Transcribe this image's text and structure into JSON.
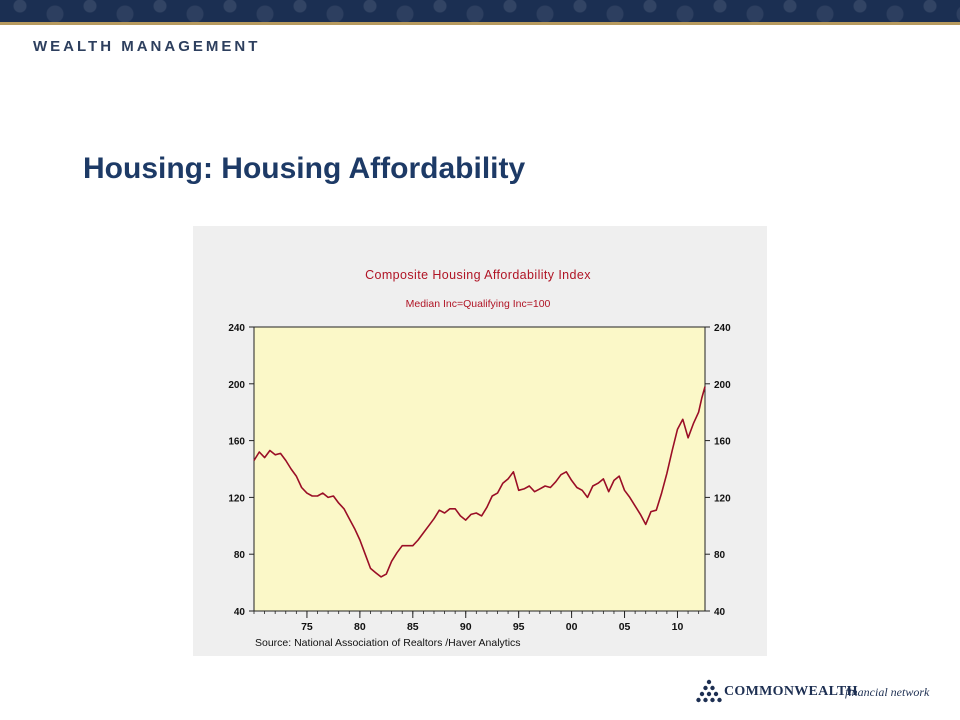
{
  "header": {
    "brand": "WEALTH MANAGEMENT"
  },
  "slide": {
    "title": "Housing: Housing Affordability"
  },
  "chart_data": {
    "type": "line",
    "title": "Composite Housing Affordability Index",
    "subtitle": "Median Inc=Qualifying Inc=100",
    "source": "Source:  National Association of Realtors /Haver Analytics",
    "x_tick_labels": [
      "75",
      "80",
      "85",
      "90",
      "95",
      "00",
      "05",
      "10"
    ],
    "x_ticks": [
      1975,
      1980,
      1985,
      1990,
      1995,
      2000,
      2005,
      2010
    ],
    "xlim": [
      1970.0,
      2012.6
    ],
    "ylim": [
      40,
      240
    ],
    "y_ticks": [
      40,
      80,
      120,
      160,
      200,
      240
    ],
    "y_tick_labels": [
      "40",
      "80",
      "120",
      "160",
      "200",
      "240"
    ],
    "grid": false,
    "plot_background": "#fbf8c8",
    "panel_background": "#efefef",
    "series": [
      {
        "color": "#9a0e26",
        "x": [
          1970.0,
          1970.5,
          1971.0,
          1971.5,
          1972.0,
          1972.5,
          1973.0,
          1973.5,
          1974.0,
          1974.5,
          1975.0,
          1975.5,
          1976.0,
          1976.5,
          1977.0,
          1977.5,
          1978.0,
          1978.5,
          1979.0,
          1979.5,
          1980.0,
          1980.5,
          1981.0,
          1981.5,
          1982.0,
          1982.5,
          1983.0,
          1983.5,
          1984.0,
          1984.5,
          1985.0,
          1985.5,
          1986.0,
          1986.5,
          1987.0,
          1987.5,
          1988.0,
          1988.5,
          1989.0,
          1989.5,
          1990.0,
          1990.5,
          1991.0,
          1991.5,
          1992.0,
          1992.5,
          1993.0,
          1993.5,
          1994.0,
          1994.5,
          1995.0,
          1995.5,
          1996.0,
          1996.5,
          1997.0,
          1997.5,
          1998.0,
          1998.5,
          1999.0,
          1999.5,
          2000.0,
          2000.5,
          2001.0,
          2001.5,
          2002.0,
          2002.5,
          2003.0,
          2003.5,
          2004.0,
          2004.5,
          2005.0,
          2005.5,
          2006.0,
          2006.5,
          2007.0,
          2007.5,
          2008.0,
          2008.5,
          2009.0,
          2009.5,
          2010.0,
          2010.5,
          2011.0,
          2011.5,
          2012.0,
          2012.3,
          2012.6
        ],
        "values": [
          146,
          152,
          148,
          153,
          150,
          151,
          146,
          140,
          135,
          127,
          123,
          121,
          121,
          123,
          120,
          121,
          116,
          112,
          105,
          98,
          90,
          80,
          70,
          67,
          64,
          66,
          75,
          81,
          86,
          86,
          86,
          90,
          95,
          100,
          105,
          111,
          109,
          112,
          112,
          107,
          104,
          108,
          109,
          107,
          113,
          121,
          123,
          130,
          133,
          138,
          125,
          126,
          128,
          124,
          126,
          128,
          127,
          131,
          136,
          138,
          132,
          127,
          125,
          120,
          128,
          130,
          133,
          124,
          132,
          135,
          125,
          120,
          114,
          108,
          101,
          110,
          111,
          123,
          137,
          153,
          168,
          175,
          162,
          172,
          180,
          190,
          198
        ]
      }
    ]
  },
  "footer": {
    "logo_name": "COMMONWEALTH",
    "logo_tagline": "financial network"
  }
}
